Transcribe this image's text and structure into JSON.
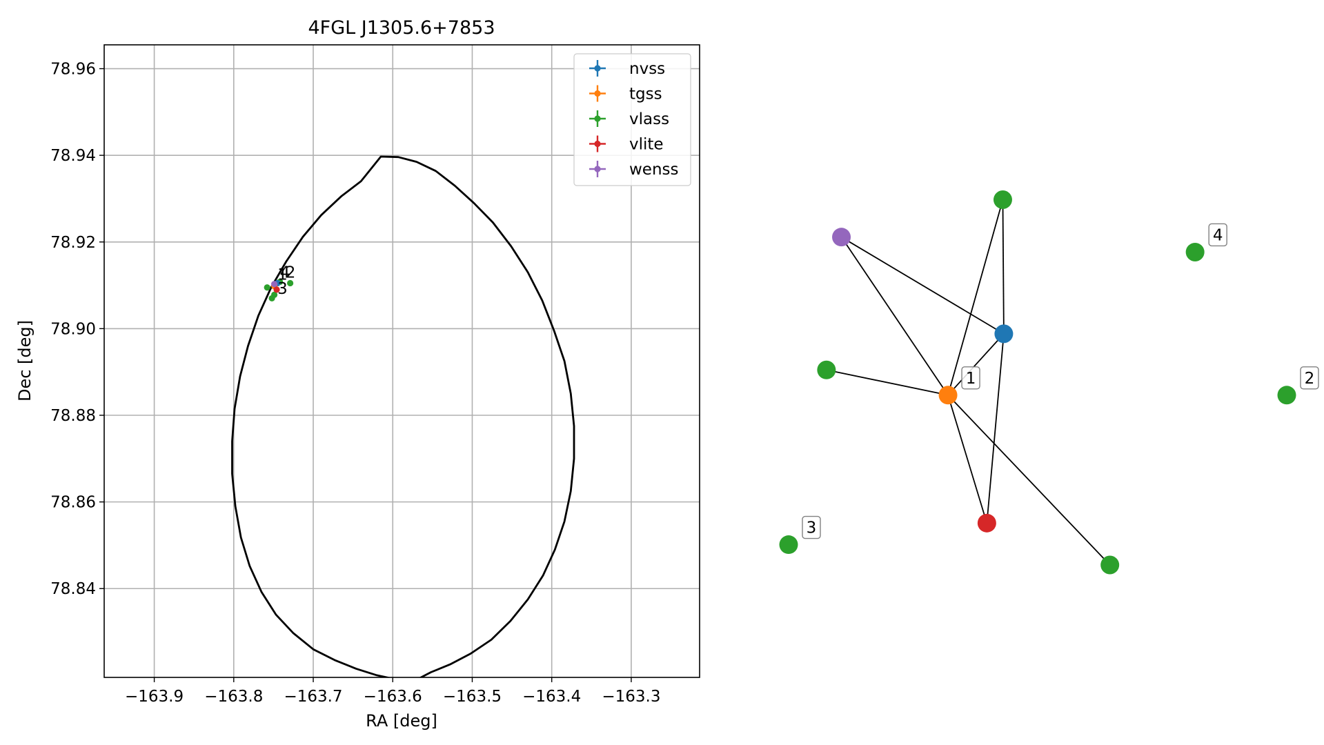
{
  "chart_data": [
    {
      "type": "scatter",
      "title": "4FGL J1305.6+7853",
      "xlabel": "RA [deg]",
      "ylabel": "Dec [deg]",
      "xlim": [
        -163.963,
        -163.214
      ],
      "ylim": [
        78.8195,
        78.9655
      ],
      "xticks": [
        -163.9,
        -163.8,
        -163.7,
        -163.6,
        -163.5,
        -163.4,
        -163.3
      ],
      "xtick_labels": [
        "−163.9",
        "−163.8",
        "−163.7",
        "−163.6",
        "−163.5",
        "−163.4",
        "−163.3"
      ],
      "yticks": [
        78.84,
        78.86,
        78.88,
        78.9,
        78.92,
        78.94,
        78.96
      ],
      "ytick_labels": [
        "78.84",
        "78.86",
        "78.88",
        "78.90",
        "78.92",
        "78.94",
        "78.96"
      ],
      "grid": true,
      "legend_position": "top-right",
      "series": [
        {
          "name": "nvss",
          "color": "#1f77b4",
          "points": [
            {
              "x": -163.745,
              "y": 78.9105
            }
          ]
        },
        {
          "name": "tgss",
          "color": "#ff7f0e",
          "points": [
            {
              "x": -163.749,
              "y": 78.9098
            }
          ]
        },
        {
          "name": "vlass",
          "color": "#2ca02c",
          "points": [
            {
              "x": -163.758,
              "y": 78.9095
            },
            {
              "x": -163.742,
              "y": 78.9108
            },
            {
              "x": -163.729,
              "y": 78.9105
            },
            {
              "x": -163.749,
              "y": 78.9078
            },
            {
              "x": -163.752,
              "y": 78.907
            }
          ]
        },
        {
          "name": "vlite",
          "color": "#d62728",
          "points": [
            {
              "x": -163.746,
              "y": 78.909
            }
          ]
        },
        {
          "name": "wenss",
          "color": "#9467bd",
          "points": [
            {
              "x": -163.749,
              "y": 78.9103
            }
          ]
        }
      ],
      "annotations": [
        {
          "text": "1",
          "x": -163.745,
          "y": 78.9113
        },
        {
          "text": "4",
          "x": -163.742,
          "y": 78.9118
        },
        {
          "text": "2",
          "x": -163.735,
          "y": 78.9118
        },
        {
          "text": "3",
          "x": -163.745,
          "y": 78.908
        }
      ],
      "ellipse": {
        "points": [
          [
            -163.615,
            78.9397
          ],
          [
            -163.593,
            78.9396
          ],
          [
            -163.57,
            78.9385
          ],
          [
            -163.546,
            78.9364
          ],
          [
            -163.522,
            78.933
          ],
          [
            -163.498,
            78.929
          ],
          [
            -163.474,
            78.9245
          ],
          [
            -163.451,
            78.919
          ],
          [
            -163.43,
            78.913
          ],
          [
            -163.412,
            78.9065
          ],
          [
            -163.397,
            78.8995
          ],
          [
            -163.384,
            78.8925
          ],
          [
            -163.376,
            78.885
          ],
          [
            -163.372,
            78.8775
          ],
          [
            -163.372,
            78.87
          ],
          [
            -163.376,
            78.8625
          ],
          [
            -163.384,
            78.8555
          ],
          [
            -163.396,
            78.849
          ],
          [
            -163.411,
            78.843
          ],
          [
            -163.43,
            78.8375
          ],
          [
            -163.452,
            78.8325
          ],
          [
            -163.476,
            78.8282
          ],
          [
            -163.502,
            78.825
          ],
          [
            -163.528,
            78.8225
          ],
          [
            -163.552,
            78.8207
          ],
          [
            -163.575,
            78.8185
          ],
          [
            -163.595,
            78.819
          ],
          [
            -163.62,
            78.82
          ],
          [
            -163.646,
            78.8215
          ],
          [
            -163.673,
            78.8235
          ],
          [
            -163.7,
            78.826
          ],
          [
            -163.725,
            78.8297
          ],
          [
            -163.747,
            78.834
          ],
          [
            -163.765,
            78.8392
          ],
          [
            -163.78,
            78.8452
          ],
          [
            -163.791,
            78.8518
          ],
          [
            -163.798,
            78.859
          ],
          [
            -163.802,
            78.8665
          ],
          [
            -163.802,
            78.874
          ],
          [
            -163.799,
            78.8815
          ],
          [
            -163.792,
            78.889
          ],
          [
            -163.782,
            78.896
          ],
          [
            -163.769,
            78.903
          ],
          [
            -163.753,
            78.9095
          ],
          [
            -163.734,
            78.9155
          ],
          [
            -163.713,
            78.9212
          ],
          [
            -163.69,
            78.9262
          ],
          [
            -163.665,
            78.9305
          ],
          [
            -163.64,
            78.934
          ],
          [
            -163.615,
            78.9397
          ]
        ]
      }
    },
    {
      "type": "network",
      "nodes": [
        {
          "id": "wenss",
          "color": "#9467bd",
          "x": 0.106,
          "y": 0.807
        },
        {
          "id": "vlass_a",
          "color": "#2ca02c",
          "x": 0.43,
          "y": 0.899
        },
        {
          "id": "nvss",
          "color": "#1f77b4",
          "x": 0.432,
          "y": 0.569
        },
        {
          "id": "tgss",
          "color": "#ff7f0e",
          "x": 0.32,
          "y": 0.418,
          "label": "1"
        },
        {
          "id": "vlass_b",
          "color": "#2ca02c",
          "x": 0.076,
          "y": 0.48
        },
        {
          "id": "vlite",
          "color": "#d62728",
          "x": 0.398,
          "y": 0.103
        },
        {
          "id": "vlass_c",
          "color": "#2ca02c",
          "x": 0.645,
          "y": 0.0
        },
        {
          "id": "vlass_d",
          "color": "#2ca02c",
          "x": 0.816,
          "y": 0.77,
          "label": "4"
        },
        {
          "id": "vlass_e",
          "color": "#2ca02c",
          "x": 1.0,
          "y": 0.418,
          "label": "2"
        },
        {
          "id": "vlass_f",
          "color": "#2ca02c",
          "x": 0.0,
          "y": 0.05,
          "label": "3"
        }
      ],
      "edges": [
        [
          "wenss",
          "nvss"
        ],
        [
          "wenss",
          "tgss"
        ],
        [
          "vlass_a",
          "tgss"
        ],
        [
          "vlass_a",
          "nvss"
        ],
        [
          "nvss",
          "tgss"
        ],
        [
          "nvss",
          "vlite"
        ],
        [
          "tgss",
          "vlass_b"
        ],
        [
          "tgss",
          "vlite"
        ],
        [
          "tgss",
          "vlass_c"
        ]
      ]
    }
  ]
}
